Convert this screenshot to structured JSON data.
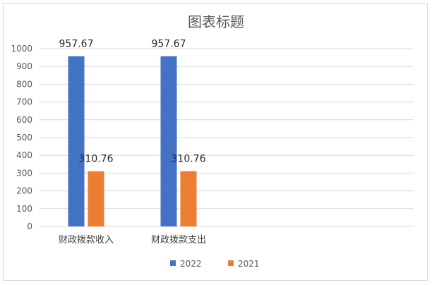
{
  "chart_data": {
    "type": "bar",
    "title": "图表标题",
    "categories": [
      "财政拨款收入",
      "财政拨款支出"
    ],
    "series": [
      {
        "name": "2022",
        "values": [
          957.67,
          957.67
        ],
        "color": "#4472c4"
      },
      {
        "name": "2021",
        "values": [
          310.76,
          310.76
        ],
        "color": "#ed7d31"
      }
    ],
    "ylim": [
      0,
      1000
    ],
    "yticks": [
      0,
      100,
      200,
      300,
      400,
      500,
      600,
      700,
      800,
      900,
      1000
    ],
    "grid": true,
    "legend_position": "bottom",
    "data_labels": true
  }
}
